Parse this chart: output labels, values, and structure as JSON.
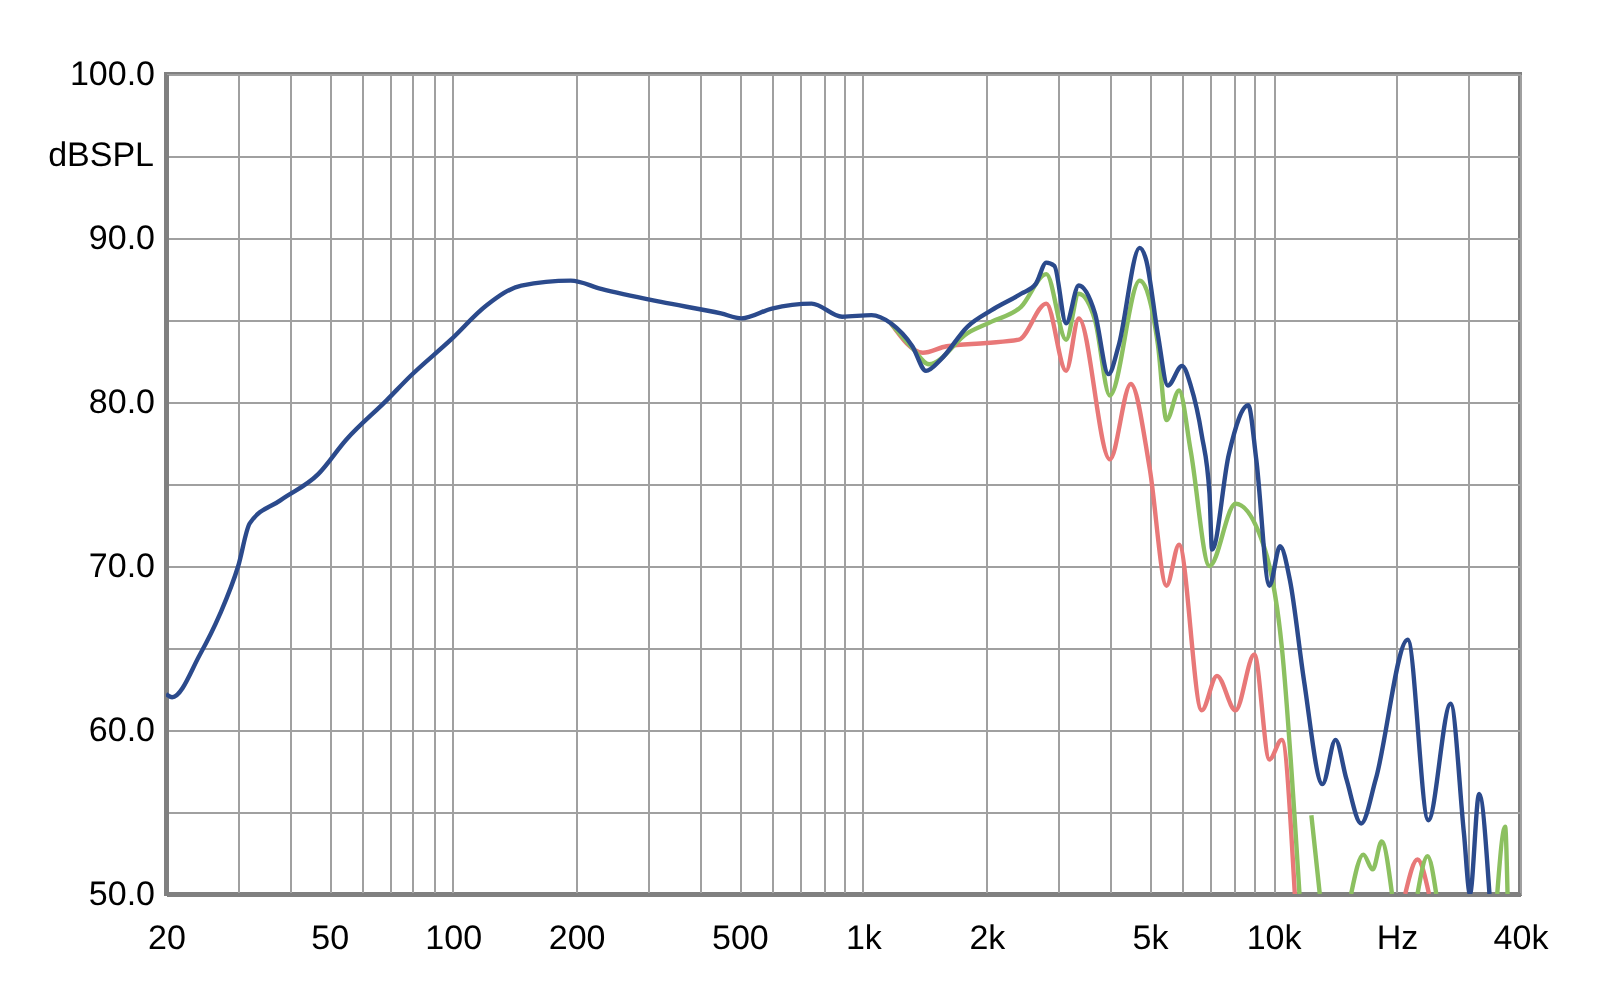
{
  "chart_data": {
    "type": "line",
    "ylabel": "dBSPL",
    "log": "x",
    "grid": true,
    "marker": "none",
    "line_style": "solid",
    "xlim": [
      20,
      40000
    ],
    "ylim": [
      50,
      100
    ],
    "xticks": [
      20,
      {
        "value": 30,
        "label": null
      },
      {
        "value": 40,
        "label": null
      },
      50,
      {
        "value": 60,
        "label": null
      },
      {
        "value": 70,
        "label": null
      },
      {
        "value": 80,
        "label": null
      },
      {
        "value": 90,
        "label": null
      },
      100,
      200,
      {
        "value": 300,
        "label": null
      },
      {
        "value": 400,
        "label": null
      },
      500,
      {
        "value": 600,
        "label": null
      },
      {
        "value": 700,
        "label": null
      },
      {
        "value": 800,
        "label": null
      },
      {
        "value": 900,
        "label": null
      },
      {
        "value": 1000,
        "label": "1k"
      },
      {
        "value": 2000,
        "label": "2k"
      },
      {
        "value": 3000,
        "label": null
      },
      {
        "value": 4000,
        "label": null
      },
      {
        "value": 5000,
        "label": "5k"
      },
      {
        "value": 6000,
        "label": null
      },
      {
        "value": 7000,
        "label": null
      },
      {
        "value": 8000,
        "label": null
      },
      {
        "value": 9000,
        "label": null
      },
      {
        "value": 10000,
        "label": "10k"
      },
      {
        "value": 20000,
        "label": "Hz"
      },
      {
        "value": 30000,
        "label": null
      },
      {
        "value": 40000,
        "label": "40k"
      }
    ],
    "yticks": [
      {
        "value": 50,
        "label": "50.0"
      },
      {
        "value": 55,
        "label": null
      },
      {
        "value": 60,
        "label": "60.0"
      },
      {
        "value": 65,
        "label": null
      },
      {
        "value": 70,
        "label": "70.0"
      },
      {
        "value": 75,
        "label": null
      },
      {
        "value": 80,
        "label": "80.0"
      },
      {
        "value": 85,
        "label": null
      },
      {
        "value": 90,
        "label": "90.0"
      },
      {
        "value": 95,
        "label": null
      },
      {
        "value": 100,
        "label": "100.0"
      }
    ],
    "series": [
      {
        "color": "#2b4a8c",
        "x": [
          20,
          20.7,
          24.2,
          27,
          30,
          32,
          38,
          47,
          55,
          69,
          79,
          99,
          121,
          147,
          194,
          230,
          322,
          451,
          506,
          600,
          750,
          890,
          1050,
          1170,
          1320,
          1425,
          1550,
          1800,
          2060,
          2430,
          2640,
          2800,
          2930,
          3130,
          3360,
          3680,
          3970,
          4200,
          4730,
          4900,
          5240,
          5540,
          6000,
          6300,
          6700,
          7000,
          7100,
          7800,
          8700,
          9100,
          9800,
          10400,
          11000,
          11900,
          13200,
          14200,
          15100,
          16400,
          17800,
          21300,
          23900,
          27100,
          29200,
          30200,
          31800,
          33700
        ],
        "values": [
          62.2,
          62.0,
          64.6,
          67.0,
          70.0,
          72.6,
          74.0,
          75.6,
          77.7,
          80.1,
          81.6,
          83.8,
          85.9,
          87.1,
          87.4,
          86.9,
          86.1,
          85.4,
          85.1,
          85.7,
          86.0,
          85.2,
          85.3,
          84.8,
          83.4,
          81.9,
          82.6,
          84.6,
          85.6,
          86.6,
          87.2,
          88.5,
          88.3,
          84.8,
          87.1,
          85.4,
          81.7,
          83.4,
          89.4,
          88.7,
          84.1,
          81.0,
          82.2,
          81.0,
          78.0,
          74.4,
          71.0,
          76.8,
          79.8,
          76.5,
          68.8,
          71.2,
          69.1,
          63.0,
          56.7,
          59.4,
          57.0,
          54.3,
          57.0,
          65.5,
          54.5,
          61.6,
          53.7,
          50.0,
          56.1,
          50.0
        ]
      },
      {
        "color": "#8cc060",
        "x": [
          1170,
          1320,
          1450,
          1800,
          2060,
          2430,
          2800,
          3130,
          3360,
          3680,
          4000,
          4730,
          5240,
          5500,
          5900,
          6300,
          7000,
          8100,
          9500,
          10500,
          11600,
          12000,
          12400,
          13000,
          13100,
          15500,
          16600,
          17500,
          18400,
          19500,
          19600,
          22500,
          23800,
          25000,
          25100,
          35200,
          36800,
          37300
        ],
        "values": [
          84.8,
          83.3,
          82.3,
          84.2,
          84.9,
          85.8,
          87.8,
          83.8,
          86.6,
          85.0,
          80.4,
          87.4,
          83.5,
          78.9,
          80.7,
          77.0,
          70.0,
          73.8,
          71.2,
          65.1,
          50.0,
          null,
          54.8,
          50.0,
          null,
          50.0,
          52.4,
          51.5,
          53.2,
          50.0,
          null,
          50.0,
          52.3,
          50.0,
          null,
          50.0,
          54.1,
          50.0
        ]
      },
      {
        "color": "#e87878",
        "x": [
          1170,
          1400,
          1600,
          2000,
          2400,
          2800,
          3130,
          3360,
          4000,
          4500,
          5000,
          5500,
          5900,
          6700,
          7300,
          8100,
          9000,
          9800,
          10500,
          11300,
          11400,
          21000,
          22500,
          24000
        ],
        "values": [
          84.8,
          83.0,
          83.4,
          83.6,
          83.8,
          86.0,
          81.9,
          85.1,
          76.5,
          81.1,
          76.0,
          68.8,
          71.3,
          61.2,
          63.3,
          61.2,
          64.6,
          58.2,
          59.4,
          50.0,
          null,
          50.0,
          52.1,
          50.0
        ]
      }
    ]
  }
}
